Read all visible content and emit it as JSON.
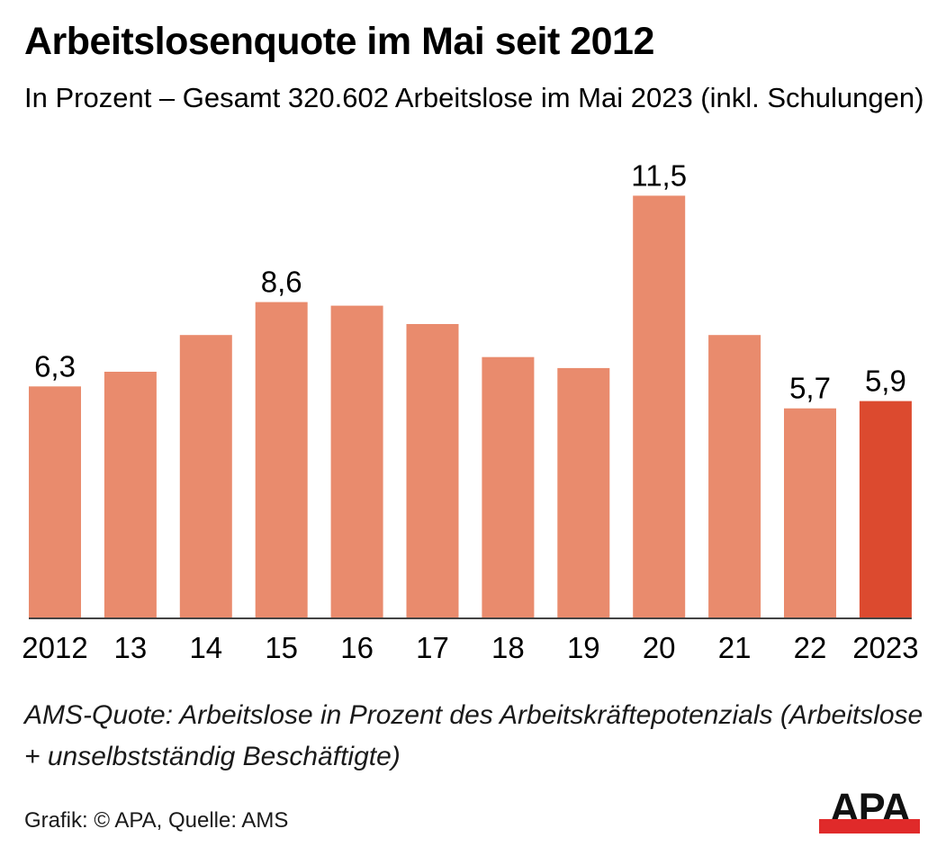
{
  "header": {
    "title": "Arbeitslosenquote im Mai seit 2012",
    "subtitle": "In Prozent – Gesamt 320.602 Arbeitslose im Mai 2023 (inkl. Schulungen)"
  },
  "chart_data": {
    "type": "bar",
    "title": "Arbeitslosenquote im Mai seit 2012",
    "subtitle": "In Prozent – Gesamt 320.602 Arbeitslose im Mai 2023 (inkl. Schulungen)",
    "xlabel": "",
    "ylabel": "In Prozent",
    "ylim": [
      0,
      12
    ],
    "grid": false,
    "legend": "none",
    "categories": [
      "2012",
      "13",
      "14",
      "15",
      "16",
      "17",
      "18",
      "19",
      "20",
      "21",
      "22",
      "2023"
    ],
    "printed_values": [
      6.3,
      null,
      null,
      8.6,
      null,
      null,
      null,
      null,
      11.5,
      null,
      5.7,
      5.9
    ],
    "estimated_values": [
      null,
      6.7,
      7.7,
      null,
      8.5,
      8.0,
      7.1,
      6.8,
      null,
      7.7,
      null,
      null
    ],
    "value_labels": [
      "6,3",
      "",
      "",
      "8,6",
      "",
      "",
      "",
      "",
      "11,5",
      "",
      "5,7",
      "5,9"
    ],
    "colors": {
      "default": "#e98b6d",
      "highlight": "#dc4a2f",
      "axis": "#444444"
    },
    "highlight_index": 11
  },
  "footer": {
    "note": "AMS-Quote: Arbeitslose in Prozent des Arbeitskräftepotenzials (Arbeitslose + unselbstständig Beschäftigte)",
    "source": "Grafik: © APA, Quelle: AMS",
    "logo_text": "APA",
    "logo_bar_color": "#e02a2a"
  }
}
